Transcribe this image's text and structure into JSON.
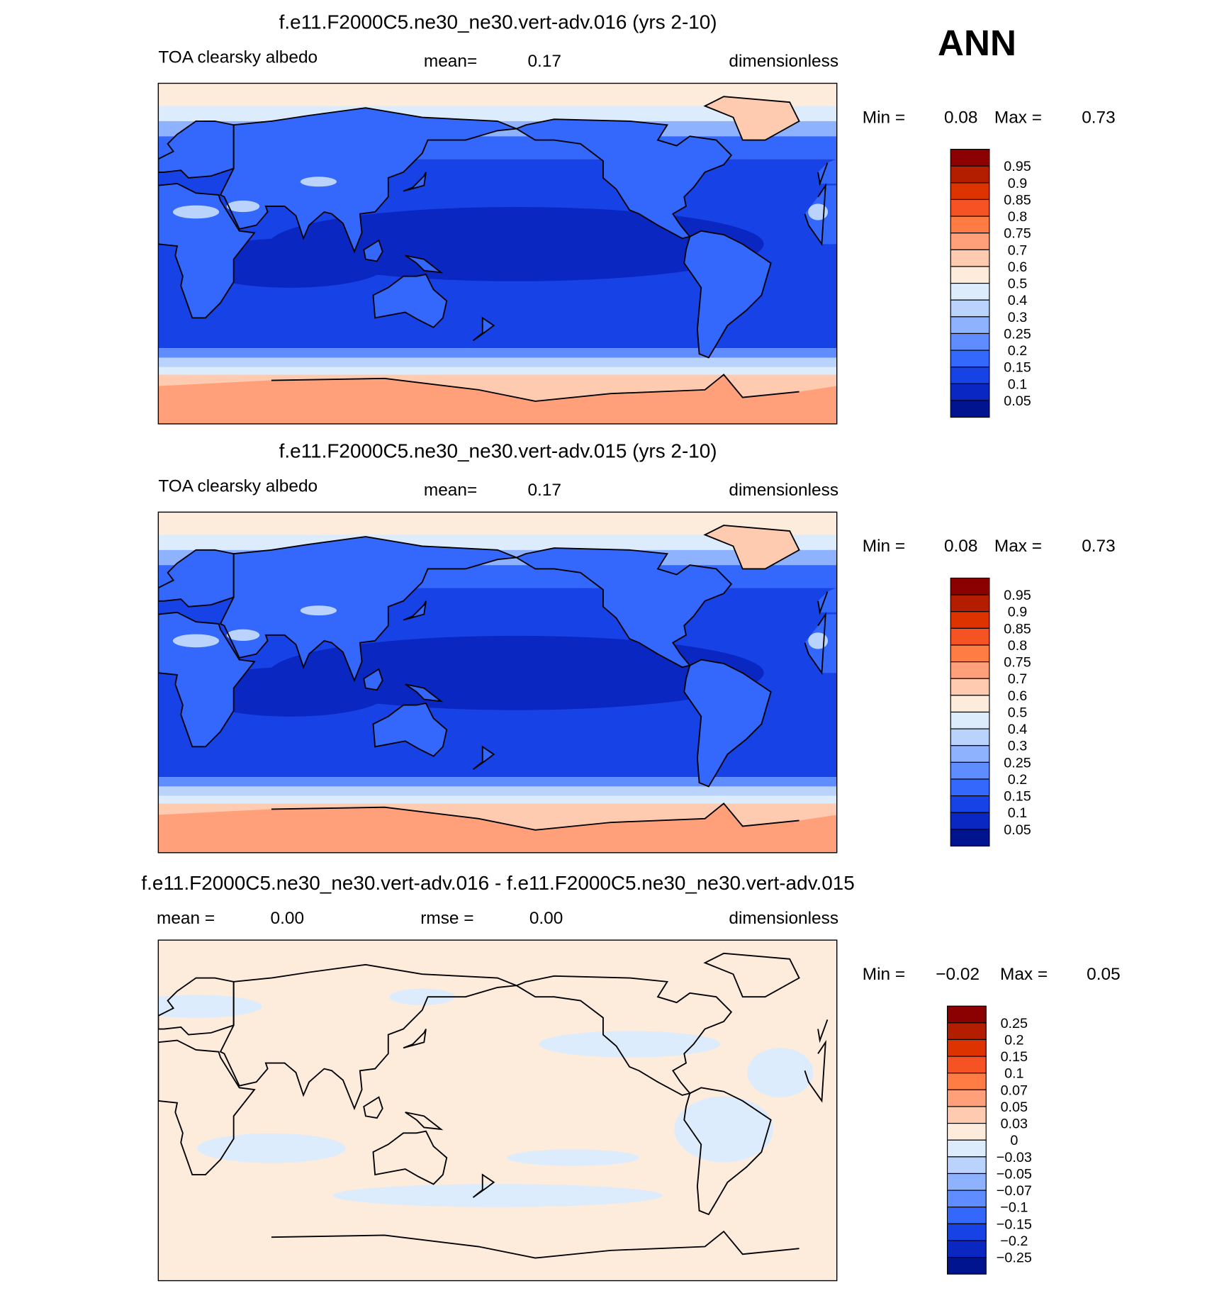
{
  "label": "ANN",
  "panels": [
    {
      "title": "f.e11.F2000C5.ne30_ne30.vert-adv.016 (yrs 2-10)",
      "variable": "TOA clearsky albedo",
      "mean_label": "mean=",
      "mean": "0.17",
      "units": "dimensionless",
      "min_label": "Min =",
      "min": "0.08",
      "max_label": "Max =",
      "max": "0.73",
      "colorbar": {
        "labels": [
          "0.95",
          "0.9",
          "0.85",
          "0.8",
          "0.75",
          "0.7",
          "0.6",
          "0.5",
          "0.4",
          "0.3",
          "0.25",
          "0.2",
          "0.15",
          "0.1",
          "0.05"
        ],
        "colors": [
          "#8b0000",
          "#b31e00",
          "#dd3300",
          "#f55323",
          "#ff7d45",
          "#ffa07a",
          "#ffcbb0",
          "#fdebdc",
          "#dcecfd",
          "#b9d3fd",
          "#8fb2ff",
          "#5f8cff",
          "#3467fb",
          "#1642e6",
          "#0a27c2",
          "#00148f"
        ]
      }
    },
    {
      "title": "f.e11.F2000C5.ne30_ne30.vert-adv.015 (yrs 2-10)",
      "variable": "TOA clearsky albedo",
      "mean_label": "mean=",
      "mean": "0.17",
      "units": "dimensionless",
      "min_label": "Min =",
      "min": "0.08",
      "max_label": "Max =",
      "max": "0.73",
      "colorbar": {
        "labels": [
          "0.95",
          "0.9",
          "0.85",
          "0.8",
          "0.75",
          "0.7",
          "0.6",
          "0.5",
          "0.4",
          "0.3",
          "0.25",
          "0.2",
          "0.15",
          "0.1",
          "0.05"
        ],
        "colors": [
          "#8b0000",
          "#b31e00",
          "#dd3300",
          "#f55323",
          "#ff7d45",
          "#ffa07a",
          "#ffcbb0",
          "#fdebdc",
          "#dcecfd",
          "#b9d3fd",
          "#8fb2ff",
          "#5f8cff",
          "#3467fb",
          "#1642e6",
          "#0a27c2",
          "#00148f"
        ]
      }
    },
    {
      "title": "f.e11.F2000C5.ne30_ne30.vert-adv.016 - f.e11.F2000C5.ne30_ne30.vert-adv.015",
      "mean_label": "mean =",
      "mean": "0.00",
      "rmse_label": "rmse =",
      "rmse": "0.00",
      "units": "dimensionless",
      "min_label": "Min =",
      "min": "−0.02",
      "max_label": "Max =",
      "max": "0.05",
      "colorbar": {
        "labels": [
          "0.25",
          "0.2",
          "0.15",
          "0.1",
          "0.07",
          "0.05",
          "0.03",
          "0",
          "−0.03",
          "−0.05",
          "−0.07",
          "−0.1",
          "−0.15",
          "−0.2",
          "−0.25"
        ],
        "colors": [
          "#8b0000",
          "#b31e00",
          "#dd3300",
          "#f55323",
          "#ff7d45",
          "#ffa07a",
          "#ffcbb0",
          "#fdebdc",
          "#dcecfd",
          "#b9d3fd",
          "#8fb2ff",
          "#5f8cff",
          "#3467fb",
          "#1642e6",
          "#0a27c2",
          "#00148f"
        ]
      }
    }
  ]
}
